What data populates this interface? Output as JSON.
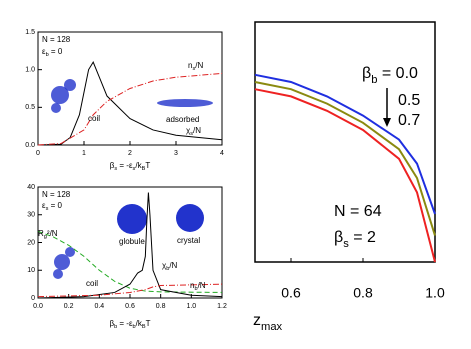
{
  "chart_data": [
    {
      "type": "line",
      "annotations": [
        [
          "N = 128"
        ],
        [
          "ε",
          "b",
          " = 0"
        ],
        [
          "coil"
        ],
        [
          "adsorbed"
        ],
        [
          "n",
          "s",
          "/N"
        ],
        [
          "χ",
          "s",
          "/N"
        ]
      ],
      "x_label": [
        "β",
        "s",
        " = -ε",
        "s",
        "/k",
        "B",
        "T"
      ],
      "xlim": [
        0,
        4
      ],
      "xticks": [
        0,
        1,
        2,
        3,
        4
      ],
      "ylim": [
        0,
        1.5
      ],
      "yticks": [
        {
          "value": 0,
          "label": "0.0"
        },
        0.5,
        {
          "value": 1,
          "label": "1.0"
        },
        1.5
      ],
      "series": [
        {
          "color": "#000000",
          "dash": "solid",
          "x": [
            0,
            0.5,
            0.7,
            0.9,
            1.0,
            1.1,
            1.2,
            1.3,
            1.5,
            2.0,
            2.5,
            3.0,
            4.0
          ],
          "values": [
            0,
            0.01,
            0.1,
            0.4,
            0.7,
            1.0,
            1.1,
            0.95,
            0.65,
            0.35,
            0.2,
            0.13,
            0.07
          ]
        },
        {
          "color": "#dd2222",
          "dash": "dashdot",
          "x": [
            0,
            0.5,
            1.0,
            1.2,
            1.5,
            2.0,
            2.5,
            3.0,
            4.0
          ],
          "values": [
            0,
            0.02,
            0.2,
            0.4,
            0.58,
            0.75,
            0.85,
            0.9,
            0.95
          ]
        }
      ]
    },
    {
      "type": "line",
      "annotations": [
        [
          "N = 128"
        ],
        [
          "ε",
          "s",
          " = 0"
        ],
        [
          "globule"
        ],
        [
          "crystal"
        ],
        [
          "R",
          "g",
          "²/N"
        ],
        [
          "coil"
        ],
        [
          "χ",
          "b",
          "/N"
        ],
        [
          "n",
          "b",
          "/N"
        ]
      ],
      "x_label": [
        "β",
        "b",
        " = -ε",
        "b",
        "/k",
        "B",
        "T"
      ],
      "xlim": [
        0,
        1.2
      ],
      "xticks": [
        {
          "value": 0,
          "label": "0.0"
        },
        0.2,
        0.4,
        0.6,
        0.8,
        {
          "value": 1,
          "label": "1.0"
        },
        1.2
      ],
      "ylim": [
        0,
        40
      ],
      "yticks": [
        0,
        10,
        20,
        30,
        40
      ],
      "series": [
        {
          "color": "#22aa22",
          "dash": "dashed",
          "x": [
            0,
            0.1,
            0.2,
            0.3,
            0.4,
            0.5,
            0.6,
            0.7,
            0.8,
            1.2
          ],
          "values": [
            24,
            22,
            19,
            15,
            10,
            6,
            3.5,
            2.5,
            2.2,
            2
          ]
        },
        {
          "color": "#000000",
          "dash": "solid",
          "x": [
            0,
            0.3,
            0.5,
            0.6,
            0.65,
            0.68,
            0.7,
            0.71,
            0.72,
            0.73,
            0.75,
            0.8,
            1.0,
            1.2
          ],
          "values": [
            0,
            0.5,
            2,
            5,
            9,
            10,
            15,
            28,
            38,
            30,
            10,
            3,
            1,
            0.5
          ]
        },
        {
          "color": "#dd2222",
          "dash": "dashdot",
          "x": [
            0,
            0.4,
            0.6,
            0.7,
            0.75,
            0.8,
            1.2
          ],
          "values": [
            0.5,
            1,
            2,
            3,
            4,
            4.5,
            5
          ]
        }
      ]
    },
    {
      "type": "line",
      "annotations": [
        [
          "β",
          "b",
          " = 0.0"
        ],
        [
          "0.5"
        ],
        [
          "0.7"
        ],
        [
          "N = 64"
        ],
        [
          "β",
          "s",
          " = 2"
        ]
      ],
      "x_label": [
        "z",
        "max"
      ],
      "xlim": [
        0.5,
        1.0
      ],
      "xticks": [
        0.6,
        0.8,
        {
          "value": 1,
          "label": "1.0"
        }
      ],
      "ylim": [
        0,
        1
      ],
      "series": [
        {
          "color": "#1f2fe0",
          "dash": "solid",
          "x": [
            0.5,
            0.6,
            0.7,
            0.8,
            0.9,
            0.95,
            1.0
          ],
          "values": [
            0.78,
            0.75,
            0.69,
            0.61,
            0.51,
            0.41,
            0.2
          ]
        },
        {
          "color": "#8a8a10",
          "dash": "solid",
          "x": [
            0.5,
            0.6,
            0.7,
            0.8,
            0.9,
            0.95,
            1.0
          ],
          "values": [
            0.75,
            0.72,
            0.66,
            0.58,
            0.47,
            0.35,
            0.11
          ]
        },
        {
          "color": "#ee2222",
          "dash": "solid",
          "x": [
            0.5,
            0.6,
            0.7,
            0.8,
            0.9,
            0.95,
            1.0
          ],
          "values": [
            0.72,
            0.69,
            0.63,
            0.55,
            0.43,
            0.29,
            0.0
          ]
        }
      ]
    }
  ]
}
